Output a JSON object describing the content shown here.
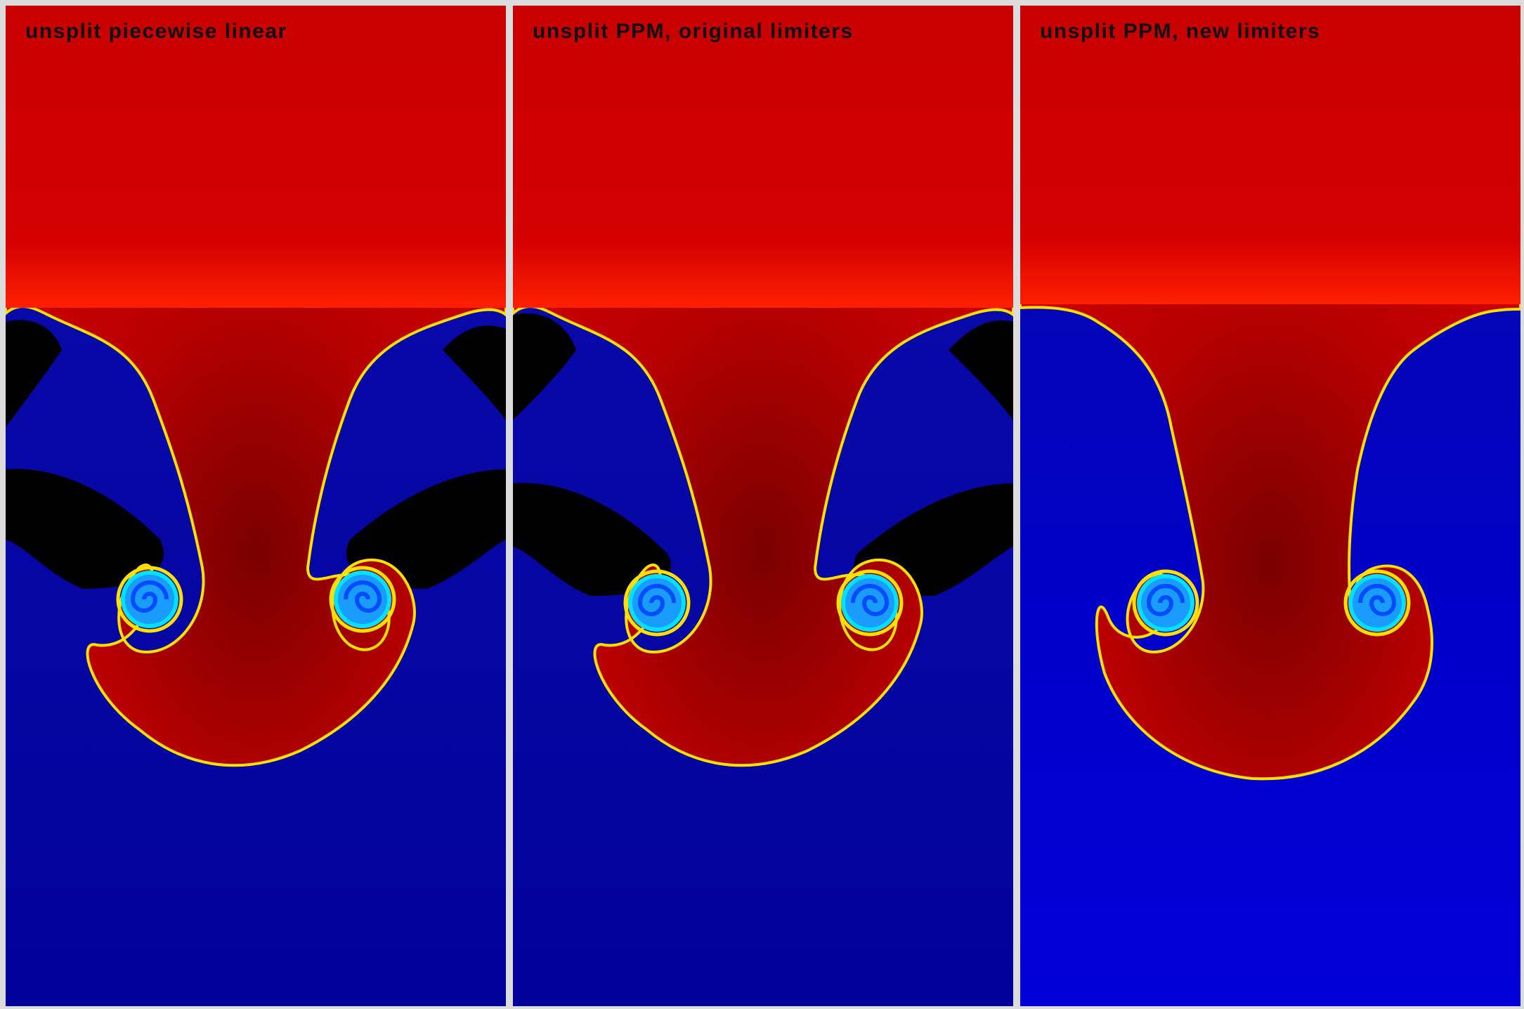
{
  "panels": [
    {
      "label": "unsplit piecewise linear",
      "variant": "pwl"
    },
    {
      "label": "unsplit PPM, original limiters",
      "variant": "ppm-orig"
    },
    {
      "label": "unsplit PPM, new limiters",
      "variant": "ppm-new"
    }
  ],
  "colors": {
    "heavy_fluid": "#cc0000",
    "heavy_fluid_light": "#ff1a00",
    "heavy_fluid_dark": "#7a0000",
    "light_fluid": "#0a0aa0",
    "light_fluid_bright": "#0000d8",
    "undershoot": "#000000",
    "interface_yellow": "#ffe000",
    "interface_cyan": "#00e0ff",
    "vortex_core": "#1a9cff",
    "frame": "#dcdcdc"
  }
}
